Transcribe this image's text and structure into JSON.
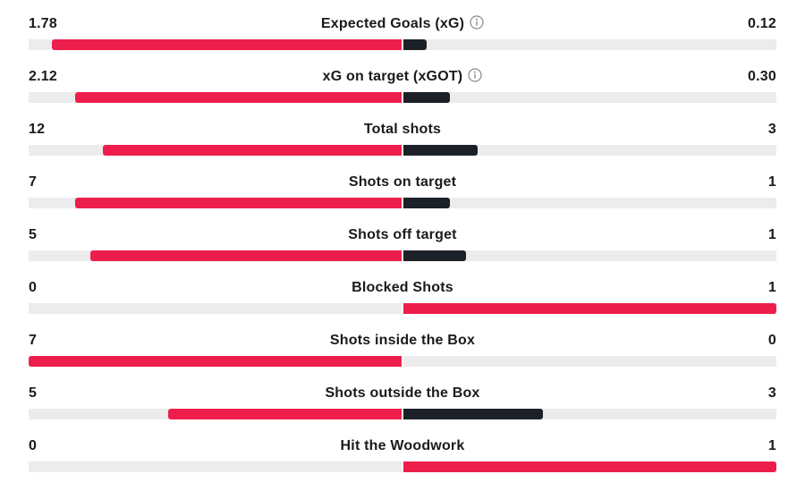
{
  "colors": {
    "leading": "#ee1e4c",
    "trailing": "#1c2128",
    "track": "#ececec"
  },
  "stats": [
    {
      "label": "Expected Goals (xG)",
      "home": "1.78",
      "away": "0.12",
      "home_value": 1.78,
      "away_value": 0.12,
      "info": true
    },
    {
      "label": "xG on target (xGOT)",
      "home": "2.12",
      "away": "0.30",
      "home_value": 2.12,
      "away_value": 0.3,
      "info": true
    },
    {
      "label": "Total shots",
      "home": "12",
      "away": "3",
      "home_value": 12,
      "away_value": 3,
      "info": false
    },
    {
      "label": "Shots on target",
      "home": "7",
      "away": "1",
      "home_value": 7,
      "away_value": 1,
      "info": false
    },
    {
      "label": "Shots off target",
      "home": "5",
      "away": "1",
      "home_value": 5,
      "away_value": 1,
      "info": false
    },
    {
      "label": "Blocked Shots",
      "home": "0",
      "away": "1",
      "home_value": 0,
      "away_value": 1,
      "info": false
    },
    {
      "label": "Shots inside the Box",
      "home": "7",
      "away": "0",
      "home_value": 7,
      "away_value": 0,
      "info": false
    },
    {
      "label": "Shots outside the Box",
      "home": "5",
      "away": "3",
      "home_value": 5,
      "away_value": 3,
      "info": false
    },
    {
      "label": "Hit the Woodwork",
      "home": "0",
      "away": "1",
      "home_value": 0,
      "away_value": 1,
      "info": false
    }
  ]
}
